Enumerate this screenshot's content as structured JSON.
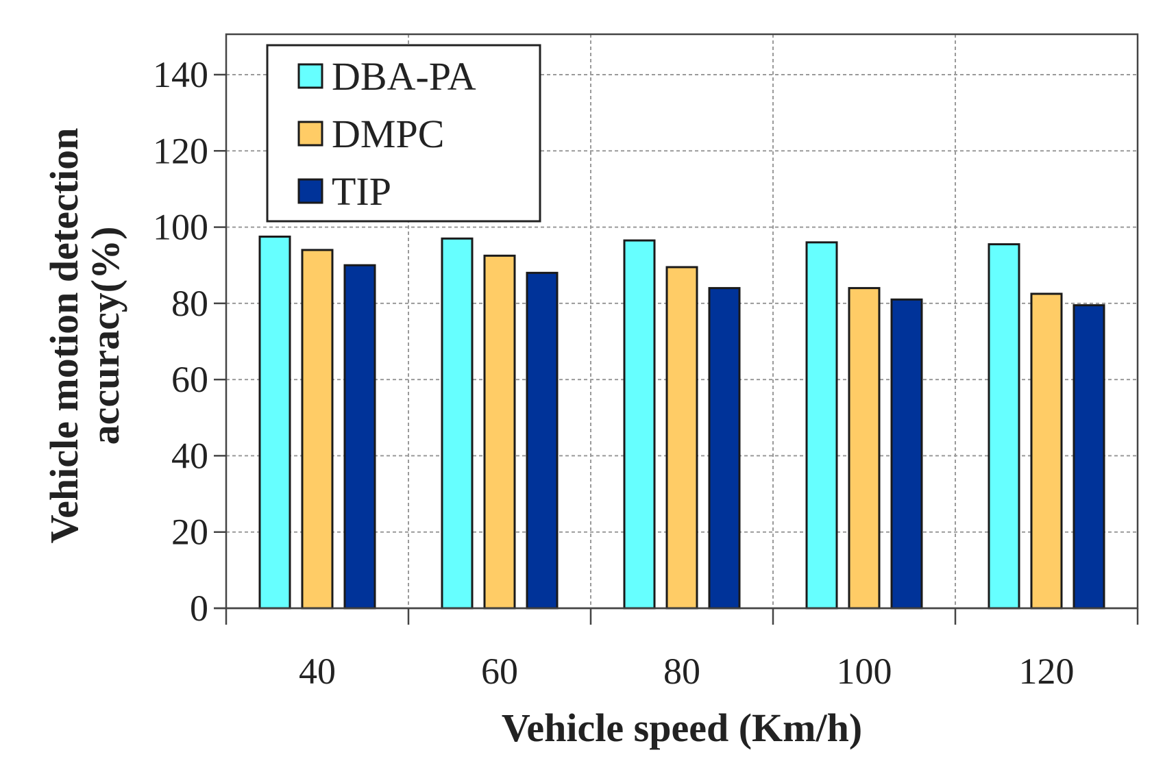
{
  "chart_data": {
    "type": "bar",
    "title": "",
    "xlabel": "Vehicle speed (Km/h)",
    "ylabel": "Vehicle motion detection accuracy(%)",
    "ylabel_lines": [
      "Vehicle motion detection",
      "accuracy(%)"
    ],
    "categories": [
      "40",
      "60",
      "80",
      "100",
      "120"
    ],
    "ylim": [
      0,
      150
    ],
    "yticks": [
      "0",
      "20",
      "40",
      "60",
      "80",
      "100",
      "120",
      "140"
    ],
    "grid": true,
    "legend_position": "top-left",
    "series": [
      {
        "name": "DBA-PA",
        "color": "#66ffff",
        "values": [
          97.5,
          97,
          96.5,
          96,
          95.5
        ]
      },
      {
        "name": "DMPC",
        "color": "#ffcc66",
        "values": [
          94,
          92.5,
          89.5,
          84,
          82.5
        ]
      },
      {
        "name": "TIP",
        "color": "#003399",
        "values": [
          90,
          88,
          84,
          81,
          79.5
        ]
      }
    ]
  }
}
